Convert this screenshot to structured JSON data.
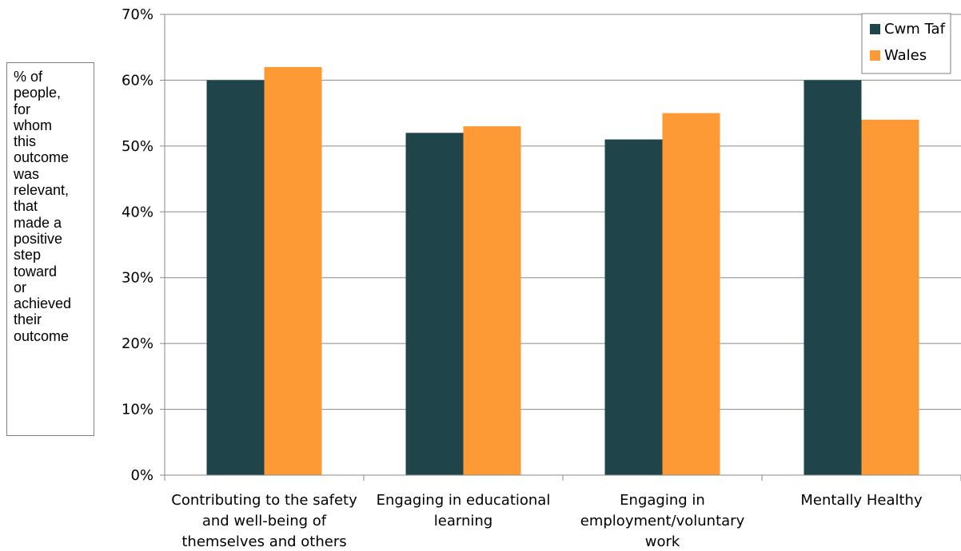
{
  "chart_data": {
    "type": "bar",
    "categories": [
      "Contributing to the safety and well-being of themselves and others",
      "Engaging in educational learning",
      "Engaging in employment/voluntary work",
      "Mentally Healthy"
    ],
    "category_lines": [
      [
        "Contributing to the safety",
        "and well-being of",
        "themselves and others"
      ],
      [
        "Engaging in educational",
        "learning"
      ],
      [
        "Engaging in",
        "employment/voluntary",
        "work"
      ],
      [
        "Mentally Healthy"
      ]
    ],
    "series": [
      {
        "name": "Cwm Taf",
        "color": "#1f4449",
        "values": [
          60,
          52,
          51,
          60
        ]
      },
      {
        "name": "Wales",
        "color": "#fd9a35",
        "values": [
          62,
          53,
          55,
          54
        ]
      }
    ],
    "ylabel": "% of\npeople,\nfor\nwhom\nthis\noutcome\nwas\nrelevant,\nthat\nmade a\npositive\nstep\ntoward\nor\nachieved\ntheir\noutcome",
    "ylim": [
      0,
      70
    ],
    "yticks": [
      "0%",
      "10%",
      "20%",
      "30%",
      "40%",
      "50%",
      "60%",
      "70%"
    ],
    "grid": true,
    "legend_position": "top-right"
  }
}
